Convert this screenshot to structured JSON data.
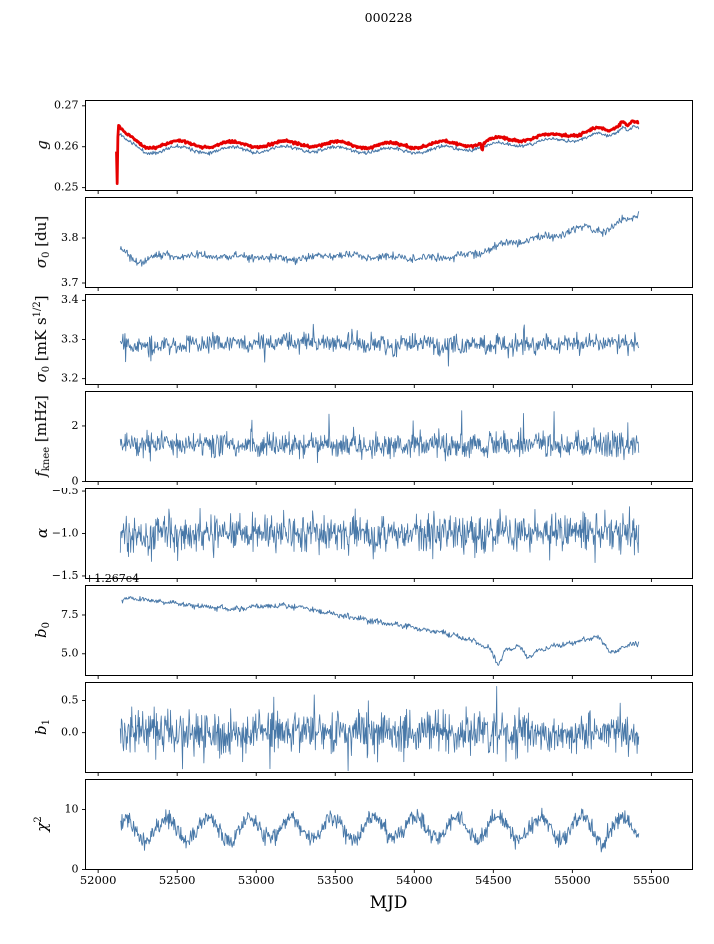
{
  "chart_data": {
    "type": "line",
    "title": "000228",
    "xlabel": "MJD",
    "frame_color": "#000000",
    "x_axis": {
      "label": "MJD",
      "lim": [
        51920,
        55760
      ],
      "ticks": [
        {
          "v": 52000,
          "label": "52000"
        },
        {
          "v": 52500,
          "label": "52500"
        },
        {
          "v": 53000,
          "label": "53000"
        },
        {
          "v": 53500,
          "label": "53500"
        },
        {
          "v": 54000,
          "label": "54000"
        },
        {
          "v": 54500,
          "label": "54500"
        },
        {
          "v": 55000,
          "label": "55000"
        },
        {
          "v": 55500,
          "label": "55500"
        }
      ]
    },
    "panels": [
      {
        "id": "g",
        "ylabel": "g",
        "ylabel_parts": [
          {
            "t": "g",
            "s": "it"
          }
        ],
        "ylim": [
          0.2493,
          0.2713
        ],
        "yticks": [
          {
            "v": 0.25,
            "label": "0.25"
          },
          {
            "v": 0.26,
            "label": "0.26"
          },
          {
            "v": 0.27,
            "label": "0.27"
          }
        ],
        "series": [
          {
            "name": "g-thin-line",
            "color": "#4878a8",
            "lw": 1.0,
            "x0": 52118,
            "x1": 55420,
            "n": 750,
            "seed": 11,
            "noise": 0.00022,
            "wiggle": {
              "amp": 0.0007,
              "period": 335,
              "phase": 0.5
            },
            "trend": [
              [
                52118,
                0.2572
              ],
              [
                52121,
                0.254
              ],
              [
                52126,
                0.263
              ],
              [
                52180,
                0.261
              ],
              [
                52300,
                0.259
              ],
              [
                52500,
                0.2595
              ],
              [
                52700,
                0.2592
              ],
              [
                53000,
                0.2593
              ],
              [
                53300,
                0.2595
              ],
              [
                53600,
                0.2592
              ],
              [
                53900,
                0.259
              ],
              [
                54200,
                0.2594
              ],
              [
                54500,
                0.2602
              ],
              [
                54700,
                0.2609
              ],
              [
                54900,
                0.2613
              ],
              [
                55050,
                0.2623
              ],
              [
                55150,
                0.2629
              ],
              [
                55230,
                0.2621
              ],
              [
                55280,
                0.2635
              ],
              [
                55320,
                0.2655
              ],
              [
                55350,
                0.2645
              ],
              [
                55380,
                0.2657
              ],
              [
                55420,
                0.2649
              ]
            ]
          },
          {
            "name": "g-thick-line",
            "color": "#e60000",
            "lw": 2.8,
            "x0": 52116,
            "x1": 55420,
            "n": 750,
            "seed": 12,
            "noise": 0.00015,
            "wiggle": {
              "amp": 0.0007,
              "period": 335,
              "phase": 0.5
            },
            "trend": [
              [
                52116,
                0.2585
              ],
              [
                52120,
                0.2497
              ],
              [
                52126,
                0.2648
              ],
              [
                52180,
                0.2625
              ],
              [
                52300,
                0.2603
              ],
              [
                52500,
                0.2608
              ],
              [
                52700,
                0.2605
              ],
              [
                53000,
                0.2606
              ],
              [
                53300,
                0.2608
              ],
              [
                53600,
                0.2605
              ],
              [
                53900,
                0.2603
              ],
              [
                54200,
                0.2607
              ],
              [
                54420,
                0.2609
              ],
              [
                54430,
                0.259
              ],
              [
                54440,
                0.261
              ],
              [
                54500,
                0.2615
              ],
              [
                54700,
                0.2622
              ],
              [
                54900,
                0.2626
              ],
              [
                55050,
                0.2636
              ],
              [
                55150,
                0.2642
              ],
              [
                55230,
                0.2634
              ],
              [
                55280,
                0.2648
              ],
              [
                55320,
                0.2668
              ],
              [
                55350,
                0.2658
              ],
              [
                55380,
                0.267
              ],
              [
                55420,
                0.2662
              ]
            ]
          }
        ]
      },
      {
        "id": "sigma0-du",
        "ylabel": "σ0 [du]",
        "ylabel_parts": [
          {
            "t": "σ",
            "s": "it"
          },
          {
            "t": "0",
            "s": "sub"
          },
          {
            "t": " [du]",
            "s": "up"
          }
        ],
        "ylim": [
          3.69,
          3.89
        ],
        "yticks": [
          {
            "v": 3.7,
            "label": "3.7"
          },
          {
            "v": 3.8,
            "label": "3.8"
          }
        ],
        "series": [
          {
            "name": "sigma0-du-line",
            "color": "#4878a8",
            "lw": 0.9,
            "x0": 52140,
            "x1": 55420,
            "n": 750,
            "seed": 21,
            "noise": 0.0045,
            "wiggle": {
              "amp": 0.003,
              "period": 240,
              "phase": 1.0
            },
            "trend": [
              [
                52140,
                3.775
              ],
              [
                52250,
                3.746
              ],
              [
                52400,
                3.762
              ],
              [
                52700,
                3.76
              ],
              [
                53000,
                3.757
              ],
              [
                53200,
                3.752
              ],
              [
                53500,
                3.762
              ],
              [
                53800,
                3.758
              ],
              [
                54100,
                3.755
              ],
              [
                54400,
                3.765
              ],
              [
                54600,
                3.79
              ],
              [
                54800,
                3.8
              ],
              [
                55000,
                3.815
              ],
              [
                55100,
                3.825
              ],
              [
                55200,
                3.812
              ],
              [
                55300,
                3.835
              ],
              [
                55420,
                3.855
              ]
            ]
          }
        ]
      },
      {
        "id": "sigma0-mk",
        "ylabel": "σ0 [mK s^1/2]",
        "ylabel_parts": [
          {
            "t": "σ",
            "s": "it"
          },
          {
            "t": "0",
            "s": "sub"
          },
          {
            "t": " [mK s",
            "s": "up"
          },
          {
            "t": "1/2",
            "s": "sup"
          },
          {
            "t": "]",
            "s": "up"
          }
        ],
        "ylim": [
          3.185,
          3.415
        ],
        "yticks": [
          {
            "v": 3.2,
            "label": "3.2"
          },
          {
            "v": 3.3,
            "label": "3.3"
          },
          {
            "v": 3.4,
            "label": "3.4"
          }
        ],
        "series": [
          {
            "name": "sigma0-mk-line",
            "color": "#4878a8",
            "lw": 0.9,
            "x0": 52140,
            "x1": 55420,
            "n": 780,
            "seed": 31,
            "noise": 0.012,
            "wiggle": {
              "amp": 0.006,
              "period": 150,
              "phase": 2.0
            },
            "spike_p": 0.01,
            "spike_amp": 0.05,
            "spike_sign": "both",
            "trend": [
              [
                52140,
                3.284
              ],
              [
                53200,
                3.291
              ],
              [
                54200,
                3.286
              ],
              [
                55420,
                3.293
              ]
            ]
          }
        ]
      },
      {
        "id": "fknee",
        "ylabel": "f_knee [mHz]",
        "ylabel_parts": [
          {
            "t": "f",
            "s": "it"
          },
          {
            "t": "knee",
            "s": "sub"
          },
          {
            "t": " [mHz]",
            "s": "up"
          }
        ],
        "ylim": [
          0,
          3.24
        ],
        "yticks": [
          {
            "v": 0,
            "label": "0"
          },
          {
            "v": 2,
            "label": "2"
          }
        ],
        "series": [
          {
            "name": "fknee-line",
            "color": "#4878a8",
            "lw": 0.8,
            "x0": 52140,
            "x1": 55420,
            "n": 950,
            "seed": 41,
            "noise": 0.22,
            "wiggle": {
              "amp": 0.05,
              "period": 130,
              "phase": 0
            },
            "spike_p": 0.012,
            "spike_amp": 0.9,
            "spike_sign": "up",
            "spikes": [
              [
                54690,
                2.45
              ]
            ],
            "trend": [
              [
                52140,
                1.33
              ],
              [
                55420,
                1.3
              ]
            ]
          }
        ]
      },
      {
        "id": "alpha",
        "ylabel": "α",
        "ylabel_parts": [
          {
            "t": "α",
            "s": "it"
          }
        ],
        "ylim": [
          -1.53,
          -0.47
        ],
        "yticks": [
          {
            "v": -1.5,
            "label": "−1.5"
          },
          {
            "v": -1.0,
            "label": "−1.0"
          },
          {
            "v": -0.5,
            "label": "−0.5"
          }
        ],
        "series": [
          {
            "name": "alpha-line",
            "color": "#4878a8",
            "lw": 0.8,
            "x0": 52140,
            "x1": 55420,
            "n": 950,
            "seed": 51,
            "noise": 0.11,
            "wiggle": {
              "amp": 0.02,
              "period": 110,
              "phase": 1
            },
            "spike_p": 0.01,
            "spike_amp": 0.3,
            "spike_sign": "both",
            "trend": [
              [
                52140,
                -1.0
              ],
              [
                55420,
                -0.99
              ]
            ]
          }
        ]
      },
      {
        "id": "b0",
        "ylabel": "b0",
        "ylabel_parts": [
          {
            "t": "b",
            "s": "it"
          },
          {
            "t": "0",
            "s": "sub"
          }
        ],
        "offset_text": "+1.267e4",
        "ylim": [
          3.6,
          9.4
        ],
        "yticks": [
          {
            "v": 5.0,
            "label": "5.0"
          },
          {
            "v": 7.5,
            "label": "7.5"
          }
        ],
        "series": [
          {
            "name": "b0-line",
            "color": "#4878a8",
            "lw": 0.9,
            "x0": 52150,
            "x1": 55420,
            "n": 800,
            "seed": 61,
            "noise": 0.085,
            "wiggle": {
              "amp": 0.05,
              "period": 100,
              "phase": 0
            },
            "trend": [
              [
                52150,
                8.35
              ],
              [
                52200,
                8.62
              ],
              [
                52300,
                8.45
              ],
              [
                52450,
                8.3
              ],
              [
                52600,
                8.1
              ],
              [
                52750,
                7.95
              ],
              [
                52900,
                7.9
              ],
              [
                53000,
                8.05
              ],
              [
                53150,
                8.1
              ],
              [
                53300,
                7.95
              ],
              [
                53450,
                7.65
              ],
              [
                53600,
                7.35
              ],
              [
                53750,
                7.1
              ],
              [
                53900,
                6.85
              ],
              [
                54050,
                6.6
              ],
              [
                54200,
                6.3
              ],
              [
                54350,
                5.9
              ],
              [
                54480,
                5.35
              ],
              [
                54530,
                4.3
              ],
              [
                54580,
                5.2
              ],
              [
                54650,
                5.55
              ],
              [
                54720,
                4.75
              ],
              [
                54800,
                5.3
              ],
              [
                54900,
                5.55
              ],
              [
                55000,
                5.7
              ],
              [
                55100,
                5.95
              ],
              [
                55160,
                6.1
              ],
              [
                55220,
                5.35
              ],
              [
                55270,
                5.05
              ],
              [
                55320,
                5.45
              ],
              [
                55420,
                5.7
              ]
            ]
          }
        ]
      },
      {
        "id": "b1",
        "ylabel": "b1",
        "ylabel_parts": [
          {
            "t": "b",
            "s": "it"
          },
          {
            "t": "1",
            "s": "sub"
          }
        ],
        "ylim": [
          -0.62,
          0.78
        ],
        "yticks": [
          {
            "v": 0.0,
            "label": "0.0"
          },
          {
            "v": 0.5,
            "label": "0.5"
          }
        ],
        "series": [
          {
            "name": "b1-line",
            "color": "#4878a8",
            "lw": 0.8,
            "x0": 52140,
            "x1": 55420,
            "n": 950,
            "seed": 71,
            "noise": 0.155,
            "wiggle": {
              "amp": 0.02,
              "period": 90,
              "phase": 0
            },
            "spike_p": 0.012,
            "spike_amp": 0.45,
            "spike_sign": "both",
            "spikes": [
              [
                54520,
                0.72
              ]
            ],
            "trend": [
              [
                52140,
                0.01
              ],
              [
                55420,
                0.0
              ]
            ]
          }
        ]
      },
      {
        "id": "chi2",
        "ylabel": "χ^2",
        "ylabel_parts": [
          {
            "t": "χ",
            "s": "it"
          },
          {
            "t": "2",
            "s": "sup"
          }
        ],
        "ylim": [
          0,
          15
        ],
        "yticks": [
          {
            "v": 0,
            "label": "0"
          },
          {
            "v": 10,
            "label": "10"
          }
        ],
        "series": [
          {
            "name": "chi2-line",
            "color": "#4878a8",
            "lw": 0.9,
            "x0": 52140,
            "x1": 55420,
            "n": 900,
            "seed": 81,
            "noise": 0.7,
            "wiggle": {
              "amp": 1.85,
              "period": 262,
              "phase": 0.8
            },
            "trend": [
              [
                52140,
                6.6
              ],
              [
                53800,
                6.95
              ],
              [
                55420,
                6.7
              ]
            ]
          }
        ]
      }
    ]
  }
}
